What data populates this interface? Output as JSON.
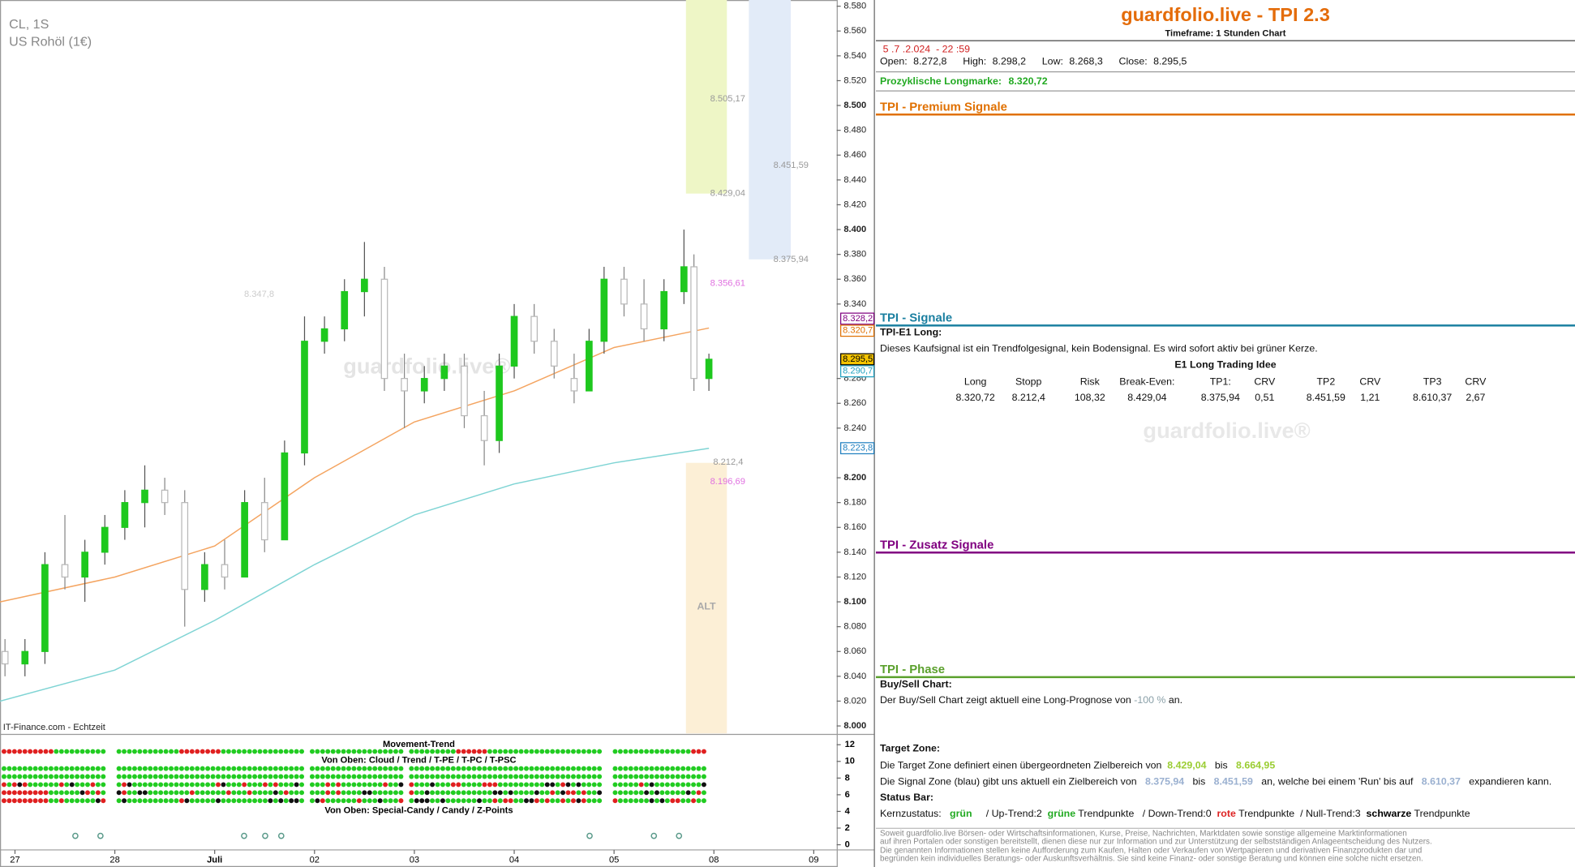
{
  "chart_data": {
    "type": "candlestick",
    "title": "CL, 1S",
    "subtitle": "US Rohöl (1€)",
    "source": "IT-Finance.com - Echtzeit",
    "watermark": "guardfolio.live®",
    "x": [
      -0.1,
      0.1,
      0.3,
      0.5,
      0.7,
      0.9,
      1.1,
      1.3,
      1.5,
      1.7,
      1.9,
      2.1,
      2.3,
      2.5,
      2.7,
      2.9,
      3.1,
      3.3,
      3.5,
      3.7,
      3.9,
      4.1,
      4.3,
      4.5,
      4.7,
      4.85,
      5.0,
      5.2,
      5.4,
      5.6,
      5.75,
      5.9,
      6.1,
      6.3,
      6.5,
      6.7,
      6.8,
      6.95
    ],
    "open": [
      8.06,
      8.05,
      8.06,
      8.13,
      8.12,
      8.14,
      8.16,
      8.18,
      8.19,
      8.18,
      8.11,
      8.13,
      8.12,
      8.18,
      8.15,
      8.22,
      8.31,
      8.32,
      8.35,
      8.36,
      8.28,
      8.27,
      8.28,
      8.29,
      8.25,
      8.23,
      8.29,
      8.33,
      8.31,
      8.28,
      8.27,
      8.31,
      8.36,
      8.34,
      8.32,
      8.35,
      8.37,
      8.28
    ],
    "high": [
      8.07,
      8.07,
      8.14,
      8.17,
      8.15,
      8.17,
      8.19,
      8.21,
      8.2,
      8.19,
      8.14,
      8.15,
      8.19,
      8.2,
      8.23,
      8.33,
      8.33,
      8.36,
      8.39,
      8.37,
      8.3,
      8.29,
      8.3,
      8.3,
      8.27,
      8.3,
      8.34,
      8.34,
      8.32,
      8.3,
      8.32,
      8.37,
      8.37,
      8.36,
      8.36,
      8.4,
      8.38,
      8.3
    ],
    "low": [
      8.04,
      8.04,
      8.05,
      8.11,
      8.1,
      8.13,
      8.15,
      8.16,
      8.17,
      8.08,
      8.1,
      8.11,
      8.12,
      8.14,
      8.15,
      8.21,
      8.3,
      8.31,
      8.33,
      8.27,
      8.24,
      8.26,
      8.27,
      8.24,
      8.21,
      8.22,
      8.28,
      8.3,
      8.28,
      8.26,
      8.27,
      8.3,
      8.33,
      8.31,
      8.31,
      8.34,
      8.27,
      8.27
    ],
    "close": [
      8.05,
      8.06,
      8.13,
      8.12,
      8.14,
      8.16,
      8.18,
      8.19,
      8.18,
      8.11,
      8.13,
      8.12,
      8.18,
      8.15,
      8.22,
      8.31,
      8.32,
      8.35,
      8.36,
      8.28,
      8.27,
      8.28,
      8.29,
      8.25,
      8.23,
      8.29,
      8.33,
      8.31,
      8.29,
      8.27,
      8.31,
      8.36,
      8.34,
      8.32,
      8.35,
      8.37,
      8.28,
      8.2955
    ],
    "up_color": "#1ec81e",
    "down_color": "#b8b8b8",
    "xlim": [
      -0.15,
      8.23
    ],
    "xticks": [
      {
        "value": 0,
        "label": "27"
      },
      {
        "value": 1,
        "label": "28"
      },
      {
        "value": 2,
        "label": "Juli"
      },
      {
        "value": 3,
        "label": "02"
      },
      {
        "value": 4,
        "label": "03"
      },
      {
        "value": 5,
        "label": "04"
      },
      {
        "value": 6,
        "label": "05"
      },
      {
        "value": 7,
        "label": "08"
      },
      {
        "value": 8,
        "label": "09"
      }
    ],
    "ylim": [
      7.994,
      8.585
    ],
    "yticks": [
      {
        "value": 8.0,
        "label": "8.000"
      },
      {
        "value": 8.02,
        "label": "8.020"
      },
      {
        "value": 8.04,
        "label": "8.040"
      },
      {
        "value": 8.06,
        "label": "8.060"
      },
      {
        "value": 8.08,
        "label": "8.080"
      },
      {
        "value": 8.1,
        "label": "8.100"
      },
      {
        "value": 8.12,
        "label": "8.120"
      },
      {
        "value": 8.14,
        "label": "8.140"
      },
      {
        "value": 8.16,
        "label": "8.160"
      },
      {
        "value": 8.18,
        "label": "8.180"
      },
      {
        "value": 8.2,
        "label": "8.200"
      },
      {
        "value": 8.24,
        "label": "8.240"
      },
      {
        "value": 8.26,
        "label": "8.260"
      },
      {
        "value": 8.28,
        "label": "8.280"
      },
      {
        "value": 8.34,
        "label": "8.340"
      },
      {
        "value": 8.36,
        "label": "8.360"
      },
      {
        "value": 8.38,
        "label": "8.380"
      },
      {
        "value": 8.4,
        "label": "8.400"
      },
      {
        "value": 8.42,
        "label": "8.420"
      },
      {
        "value": 8.44,
        "label": "8.440"
      },
      {
        "value": 8.46,
        "label": "8.460"
      },
      {
        "value": 8.48,
        "label": "8.480"
      },
      {
        "value": 8.5,
        "label": "8.500"
      },
      {
        "value": 8.52,
        "label": "8.520"
      },
      {
        "value": 8.54,
        "label": "8.540"
      },
      {
        "value": 8.56,
        "label": "8.560"
      },
      {
        "value": 8.58,
        "label": "8.580"
      }
    ],
    "lines": [
      {
        "color": "#7fd4d4",
        "x": [
          -0.15,
          1,
          2,
          3,
          4,
          5,
          6,
          6.95
        ],
        "values": [
          8.02,
          8.045,
          8.085,
          8.13,
          8.17,
          8.195,
          8.212,
          8.2238
        ]
      },
      {
        "color": "#f4a460",
        "x": [
          -0.15,
          1,
          2,
          3,
          4,
          5,
          6,
          6.95
        ],
        "values": [
          8.1,
          8.12,
          8.145,
          8.2,
          8.245,
          8.27,
          8.305,
          8.3207
        ]
      }
    ],
    "zones": [
      {
        "xlim": [
          6.72,
          7.13
        ],
        "ylim": [
          8.429,
          8.585
        ],
        "color": "#eef6c6"
      },
      {
        "xlim": [
          7.35,
          7.77
        ],
        "ylim": [
          8.376,
          8.585
        ],
        "color": "#e2ebf8"
      },
      {
        "xlim": [
          6.72,
          7.13
        ],
        "ylim": [
          7.994,
          8.212
        ],
        "color": "#fcefd6"
      }
    ],
    "levels": [
      {
        "value": 8.50517,
        "label": "8.505,17",
        "color": "#999999"
      },
      {
        "value": 8.45159,
        "label": "8.451,59",
        "color": "#999999"
      },
      {
        "value": 8.42904,
        "label": "8.429,04",
        "color": "#999999"
      },
      {
        "value": 8.37594,
        "label": "8.375,94",
        "color": "#999999"
      },
      {
        "value": 8.35661,
        "label": "8.356,61",
        "color": "#e070e0"
      },
      {
        "value": 8.3478,
        "label": "8.347,8",
        "color": "#cccccc"
      },
      {
        "value": 8.2124,
        "label": "8.212,4",
        "color": "#999999"
      },
      {
        "value": 8.19669,
        "label": "8.196,69",
        "color": "#e070e0"
      }
    ],
    "zone_label": "ALT",
    "price_tags": [
      {
        "value": 8.3282,
        "label": "8.328,2",
        "color": "#800080",
        "bg": "#ffffff"
      },
      {
        "value": 8.3207,
        "label": "8.320,7",
        "color": "#e07000",
        "bg": "#ffffff"
      },
      {
        "value": 8.2955,
        "label": "8.295,5",
        "color": "#000000",
        "bg": "#f5c400"
      },
      {
        "value": 8.2907,
        "label": "8.290,7",
        "color": "#20a0c0",
        "bg": "#ffffff"
      },
      {
        "value": 8.2238,
        "label": "8.223,8",
        "color": "#2080c0",
        "bg": "#ffffff"
      }
    ],
    "indicator": {
      "title": "Movement-Trend",
      "label_top": "Von Oben: Cloud / Trend / T-PE / T-PC / T-PSC",
      "label_bottom": "Von Oben: Special-Candy / Candy / Z-Points",
      "ylim": [
        -0.5,
        13
      ],
      "yticks": [
        0,
        2,
        4,
        6,
        8,
        10,
        12
      ]
    }
  },
  "panel": {
    "title": "guardfolio.live - TPI 2.3",
    "timeframe": "Timeframe: 1 Stunden Chart",
    "datetime": "5 .7 .2.024  - 22 :59",
    "ohlc": [
      {
        "label": "Open:",
        "value": "8.272,8"
      },
      {
        "label": "High:",
        "value": "8.298,2"
      },
      {
        "label": "Low:",
        "value": "8.268,3"
      },
      {
        "label": "Close:",
        "value": "8.295,5"
      }
    ],
    "longmark": {
      "label": "Prozyklische Longmarke:",
      "value": "8.320,72"
    },
    "sections": [
      {
        "title": "TPI - Premium Signale",
        "color": "#e07000"
      },
      {
        "title": "TPI - Signale",
        "color": "#1a7fa0"
      },
      {
        "title": "TPI - Zusatz Signale",
        "color": "#800080"
      },
      {
        "title": "TPI - Phase",
        "color": "#5aa02c"
      }
    ],
    "e1": {
      "heading": "TPI-E1 Long:",
      "text": "Dieses Kaufsignal ist ein Trendfolgesignal, kein Bodensignal. Es wird sofort aktiv bei grüner Kerze.",
      "table_title": "E1 Long Trading Idee",
      "headers": [
        "Long",
        "Stopp",
        "Risk",
        "Break-Even:",
        "TP1:",
        "CRV",
        "TP2",
        "CRV",
        "TP3",
        "CRV"
      ],
      "values": [
        "8.320,72",
        "8.212,4",
        "108,32",
        "8.429,04",
        "8.375,94",
        "0,51",
        "8.451,59",
        "1,21",
        "8.610,37",
        "2,67"
      ]
    },
    "watermark": "guardfolio.live®",
    "buysell": {
      "heading": "Buy/Sell Chart:",
      "parts": [
        {
          "text": "Der Buy/Sell Chart zeigt aktuell eine Long-Prognose von "
        },
        {
          "text": "-100 %",
          "color": "#8aa0a8"
        },
        {
          "text": " an."
        }
      ]
    },
    "target": {
      "heading": "Target Zone:",
      "lines": [
        [
          {
            "text": "Die Target Zone definiert einen übergeordneten Zielbereich von  "
          },
          {
            "text": "8.429,04",
            "color": "#9acd32",
            "bold": true
          },
          {
            "text": "   bis   "
          },
          {
            "text": "8.664,95",
            "color": "#9acd32",
            "bold": true
          }
        ],
        [
          {
            "text": "Die Signal Zone (blau) gibt uns aktuell ein Zielbereich von   "
          },
          {
            "text": "8.375,94",
            "color": "#9ab0d0",
            "bold": true
          },
          {
            "text": "   bis   "
          },
          {
            "text": "8.451,59",
            "color": "#9ab0d0",
            "bold": true
          },
          {
            "text": "   an, welche bei einem 'Run' bis auf   "
          },
          {
            "text": "8.610,37",
            "color": "#9ab0d0",
            "bold": true
          },
          {
            "text": "   expandieren kann."
          }
        ]
      ]
    },
    "status": {
      "heading": "Status Bar:",
      "parts": [
        {
          "text": "Kernzustatus:   "
        },
        {
          "text": "grün",
          "color": "#22aa22",
          "bold": true
        },
        {
          "text": "     / Up-Trend:2  "
        },
        {
          "text": "grüne",
          "color": "#22aa22",
          "bold": true
        },
        {
          "text": " Trendpunkte   / Down-Trend:0  "
        },
        {
          "text": "rote",
          "color": "#dd2222",
          "bold": true
        },
        {
          "text": " Trendpunkte  / Null-Trend:3  "
        },
        {
          "text": "schwarze",
          "color": "#000000",
          "bold": true
        },
        {
          "text": " Trendpunkte"
        }
      ]
    },
    "disclaimer": [
      "Soweit guardfolio.live Börsen- oder Wirtschaftsinformationen, Kurse, Preise, Nachrichten, Marktdaten sowie sonstige allgemeine Marktinformationen",
      "auf ihren Portalen oder sonstigen bereitstellt, dienen diese nur zur Information und zur Unterstützung der selbstständigen Anlageentscheidung des Nutzers.",
      "Die genannten Informationen stellen keine Aufforderung zum Kaufen, Halten oder Verkaufen von Wertpapieren und derivativen Finanzprodukten dar und",
      "begründen kein individuelles Beratungs- oder Auskunftsverhältnis. Sie sind keine Finanz- oder sonstige Beratung und können eine solche nicht ersetzen."
    ]
  }
}
